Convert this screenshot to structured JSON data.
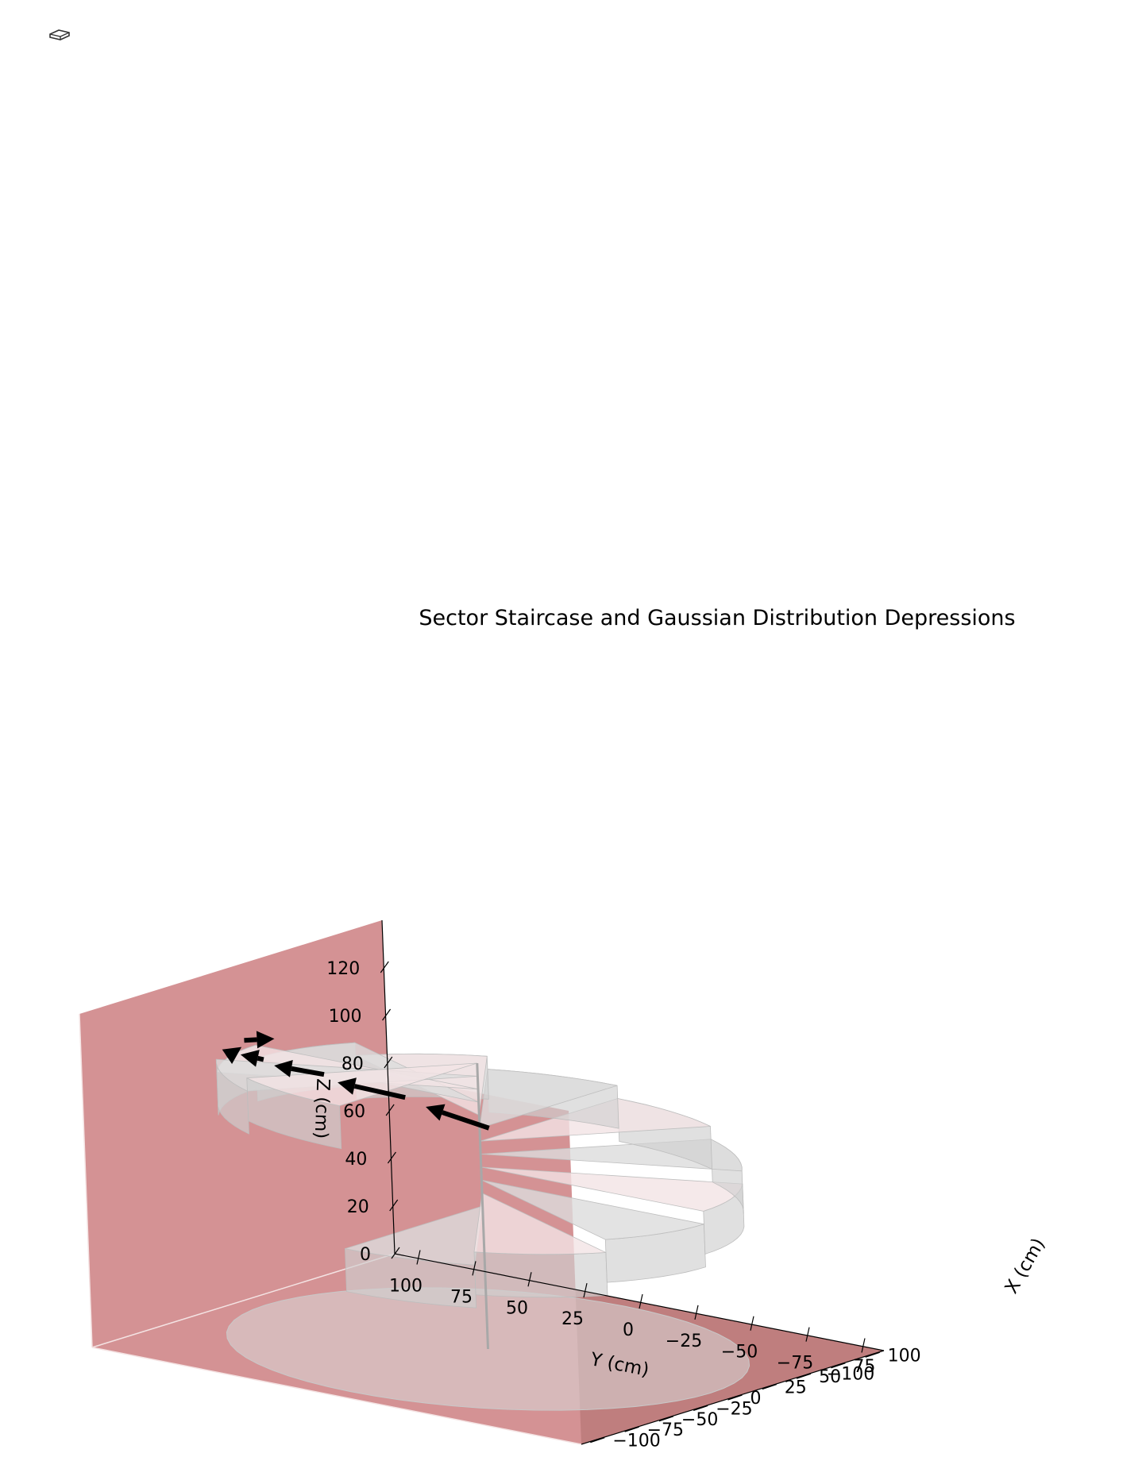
{
  "chart_data": {
    "type": "3d-surface",
    "title": "Sector Staircase and Gaussian Distribution Depressions",
    "xlabel": "X (cm)",
    "ylabel": "Y (cm)",
    "zlabel": "Z (cm)",
    "xlim": [
      -110,
      110
    ],
    "ylim": [
      -110,
      110
    ],
    "zlim": [
      0,
      140
    ],
    "x_ticks": [
      100,
      75,
      50,
      25,
      0,
      -25,
      -50,
      -75,
      -100
    ],
    "x_tick_labels": [
      "100",
      "75",
      "50",
      "25",
      "0",
      "−25",
      "−50",
      "−75",
      "−100"
    ],
    "y_ticks": [
      100,
      75,
      50,
      25,
      0,
      -25,
      -50,
      -75,
      -100
    ],
    "y_tick_labels": [
      "100",
      "75",
      "50",
      "25",
      "0",
      "−25",
      "−50",
      "−75",
      "−100"
    ],
    "z_ticks": [
      120,
      100,
      80,
      60,
      40,
      20,
      0
    ],
    "z_tick_labels": [
      "120",
      "100",
      "80",
      "60",
      "40",
      "20",
      "0"
    ],
    "grid": false,
    "pane_color": "#d49294",
    "floor_color": "#bf7e7e",
    "surface_color": "#d9d9d9",
    "arrow_color": "#000000",
    "staircase": {
      "steps": 12,
      "radius": 100,
      "start_angle_deg": 180,
      "end_angle_deg": 540,
      "base_height": 60,
      "rise": 60
    },
    "arrows": [
      {
        "from_angle_deg": 390,
        "to_angle_deg": 405
      },
      {
        "from_angle_deg": 410,
        "to_angle_deg": 428
      },
      {
        "from_angle_deg": 432,
        "to_angle_deg": 450
      },
      {
        "from_angle_deg": 455,
        "to_angle_deg": 472
      },
      {
        "from_angle_deg": 477,
        "to_angle_deg": 494
      },
      {
        "from_angle_deg": 497,
        "to_angle_deg": 515
      }
    ]
  }
}
